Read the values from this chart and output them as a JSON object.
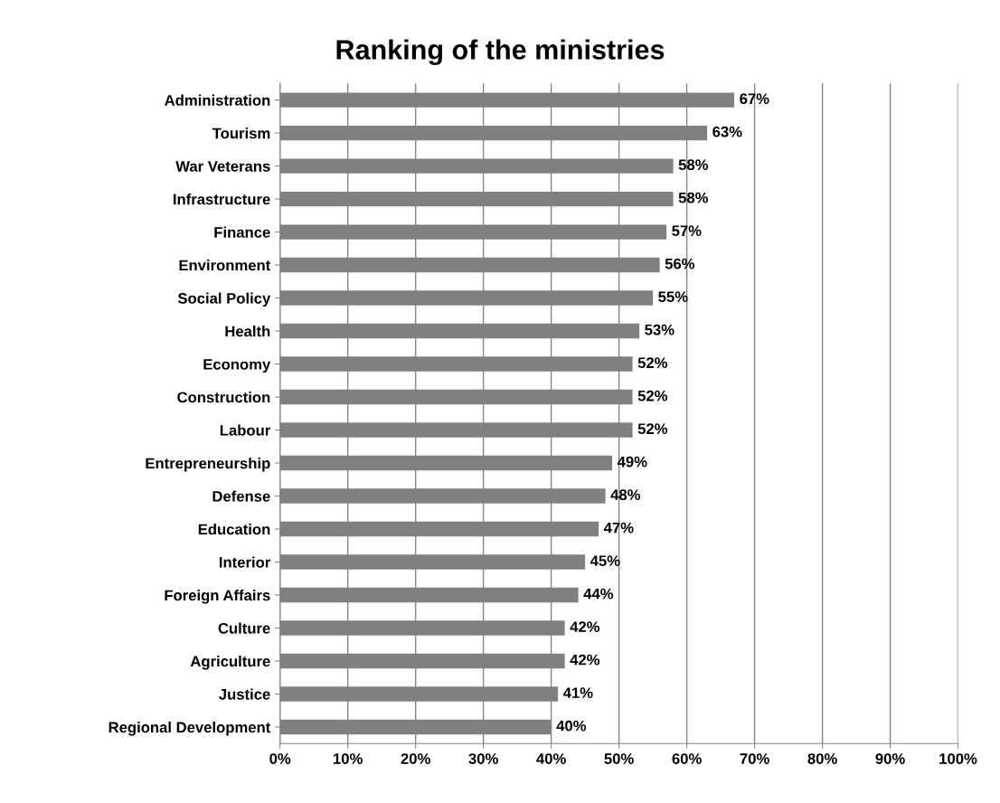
{
  "chart_data": {
    "type": "bar",
    "orientation": "horizontal",
    "title": "Ranking of the ministries",
    "categories": [
      "Administration",
      "Tourism",
      "War Veterans",
      "Infrastructure",
      "Finance",
      "Environment",
      "Social Policy",
      "Health",
      "Economy",
      "Construction",
      "Labour",
      "Entrepreneurship",
      "Defense",
      "Education",
      "Interior",
      "Foreign Affairs",
      "Culture",
      "Agriculture",
      "Justice",
      "Regional Development"
    ],
    "values": [
      67,
      63,
      58,
      58,
      57,
      56,
      55,
      53,
      52,
      52,
      52,
      49,
      48,
      47,
      45,
      44,
      42,
      42,
      41,
      40
    ],
    "value_labels": [
      "67%",
      "63%",
      "58%",
      "58%",
      "57%",
      "56%",
      "55%",
      "53%",
      "52%",
      "52%",
      "52%",
      "49%",
      "48%",
      "47%",
      "45%",
      "44%",
      "42%",
      "42%",
      "41%",
      "40%"
    ],
    "color": "#808080",
    "xlim": [
      0,
      100
    ],
    "xticks": [
      {
        "value": 0,
        "label": "0%"
      },
      {
        "value": 10,
        "label": "10%"
      },
      {
        "value": 20,
        "label": "20%"
      },
      {
        "value": 30,
        "label": "30%"
      },
      {
        "value": 40,
        "label": "40%"
      },
      {
        "value": 50,
        "label": "50%"
      },
      {
        "value": 60,
        "label": "60%"
      },
      {
        "value": 70,
        "label": "70%"
      },
      {
        "value": 80,
        "label": "80%"
      },
      {
        "value": 90,
        "label": "90%"
      },
      {
        "value": 100,
        "label": "100%"
      }
    ],
    "grid": "x",
    "legend": false
  }
}
